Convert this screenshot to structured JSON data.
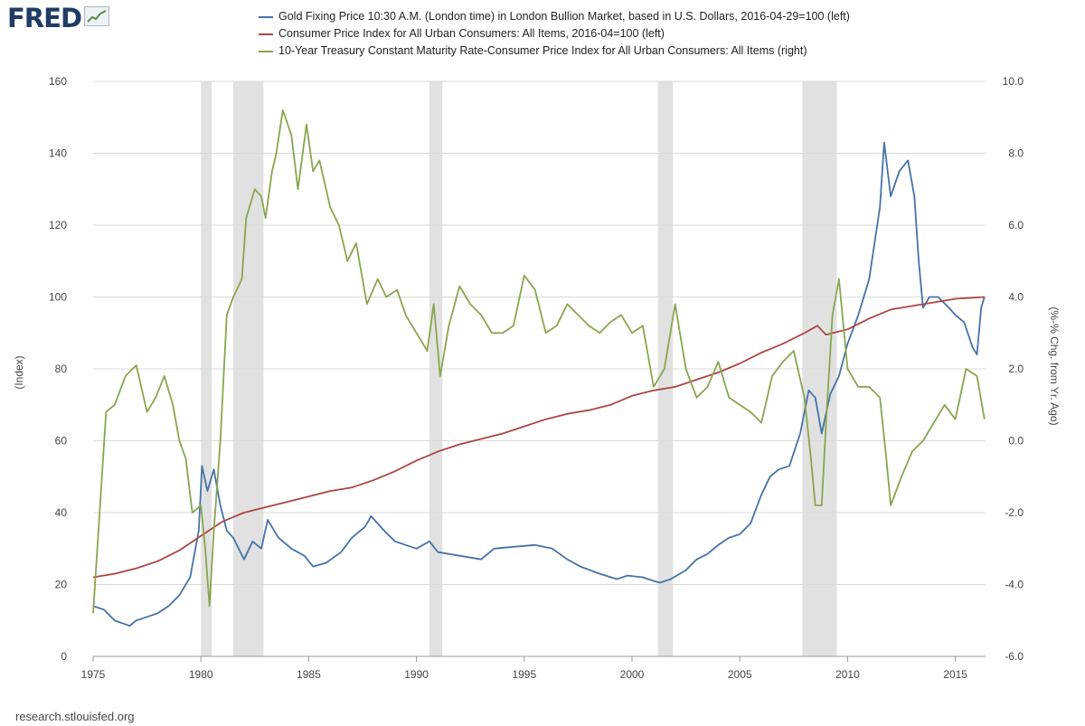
{
  "logo": {
    "text": "FRED"
  },
  "source": "research.stlouisfed.org",
  "colors": {
    "gold": "#4572a7",
    "cpi": "#aa4643",
    "spread": "#89a54e",
    "recession": "#e1e1e1",
    "grid": "#d9d9d9"
  },
  "chart_data": {
    "type": "line",
    "title": "",
    "xlabel": "",
    "ylabel_left": "(Index)",
    "ylabel_right": "(%-% Chg. from Yr. Ago)",
    "xlim": [
      1975.0,
      2016.4
    ],
    "ylim_left": [
      0,
      160
    ],
    "ylim_right": [
      -6,
      10
    ],
    "grid": true,
    "legend_position": "top",
    "x_ticks": [
      "1975",
      "1980",
      "1985",
      "1990",
      "1995",
      "2000",
      "2005",
      "2010",
      "2015"
    ],
    "left_ticks": [
      "0",
      "20",
      "40",
      "60",
      "80",
      "100",
      "120",
      "140",
      "160"
    ],
    "right_ticks": [
      "-6.0",
      "-4.0",
      "-2.0",
      "0.0",
      "2.0",
      "4.0",
      "6.0",
      "8.0",
      "10.0"
    ],
    "recessions": [
      [
        1980.0,
        1980.5
      ],
      [
        1981.5,
        1982.9
      ],
      [
        1990.6,
        1991.2
      ],
      [
        2001.2,
        2001.9
      ],
      [
        2007.9,
        2009.5
      ]
    ],
    "series": [
      {
        "name": "Gold Fixing Price 10:30 A.M. (London time) in London Bullion Market, based in U.S. Dollars, 2016-04-29=100 (left)",
        "axis": "left",
        "color_key": "gold",
        "x": [
          1975.0,
          1975.5,
          1976.0,
          1976.7,
          1977.0,
          1977.5,
          1978.0,
          1978.5,
          1979.0,
          1979.5,
          1979.9,
          1980.05,
          1980.3,
          1980.6,
          1980.9,
          1981.2,
          1981.5,
          1982.0,
          1982.4,
          1982.8,
          1983.1,
          1983.6,
          1984.2,
          1984.8,
          1985.2,
          1985.8,
          1986.5,
          1987.0,
          1987.6,
          1987.9,
          1988.5,
          1989.0,
          1989.5,
          1990.0,
          1990.6,
          1991.0,
          1992.0,
          1993.0,
          1993.6,
          1994.5,
          1995.5,
          1996.3,
          1997.0,
          1997.6,
          1998.5,
          1999.3,
          1999.8,
          2000.5,
          2001.0,
          2001.3,
          2001.8,
          2002.5,
          2003.0,
          2003.5,
          2004.0,
          2004.5,
          2005.0,
          2005.5,
          2006.0,
          2006.4,
          2006.8,
          2007.3,
          2007.8,
          2008.2,
          2008.5,
          2008.8,
          2009.2,
          2009.6,
          2010.0,
          2010.5,
          2011.0,
          2011.5,
          2011.7,
          2012.0,
          2012.4,
          2012.8,
          2013.1,
          2013.3,
          2013.5,
          2013.8,
          2014.2,
          2014.7,
          2015.0,
          2015.4,
          2015.8,
          2016.0,
          2016.2,
          2016.35
        ],
        "values": [
          14,
          13,
          10,
          8.5,
          10,
          11,
          12,
          14,
          17,
          22,
          35,
          53,
          46,
          52,
          42,
          35,
          33,
          27,
          32,
          30,
          38,
          33,
          30,
          28,
          25,
          26,
          29,
          33,
          36,
          39,
          35,
          32,
          31,
          30,
          32,
          29,
          28,
          27,
          30,
          30.5,
          31,
          30,
          27,
          25,
          23,
          21.5,
          22.5,
          22,
          21,
          20.5,
          21.5,
          24,
          27,
          28.5,
          31,
          33,
          34,
          37,
          45,
          50,
          52,
          53,
          62,
          74,
          72,
          62,
          73,
          78,
          87,
          95,
          105,
          125,
          143,
          128,
          135,
          138,
          128,
          110,
          97,
          100,
          100,
          97,
          95,
          93,
          86,
          84,
          97,
          100
        ]
      },
      {
        "name": "Consumer Price Index for All Urban Consumers: All Items, 2016-04=100 (left)",
        "axis": "left",
        "color_key": "cpi",
        "x": [
          1975.0,
          1976.0,
          1977.0,
          1978.0,
          1979.0,
          1980.0,
          1981.0,
          1982.0,
          1983.0,
          1984.0,
          1985.0,
          1986.0,
          1987.0,
          1988.0,
          1989.0,
          1990.0,
          1991.0,
          1992.0,
          1993.0,
          1994.0,
          1995.0,
          1996.0,
          1997.0,
          1998.0,
          1999.0,
          2000.0,
          2001.0,
          2002.0,
          2003.0,
          2004.0,
          2005.0,
          2006.0,
          2007.0,
          2008.0,
          2008.6,
          2009.0,
          2010.0,
          2011.0,
          2012.0,
          2013.0,
          2014.0,
          2015.0,
          2016.35
        ],
        "values": [
          22,
          23,
          24.5,
          26.5,
          29.5,
          33.5,
          37.5,
          40,
          41.5,
          43,
          44.5,
          46,
          47,
          49,
          51.5,
          54.5,
          57,
          59,
          60.5,
          62,
          64,
          66,
          67.5,
          68.5,
          70,
          72.5,
          74,
          75,
          77,
          79,
          81.5,
          84.5,
          87,
          90,
          92,
          89.5,
          91,
          94,
          96.5,
          97.5,
          98.5,
          99.5,
          100
        ]
      },
      {
        "name": "10-Year Treasury Constant Maturity Rate-Consumer Price Index for All Urban Consumers: All Items (right)",
        "axis": "right",
        "color_key": "spread",
        "x": [
          1975.0,
          1975.3,
          1975.6,
          1976.0,
          1976.5,
          1977.0,
          1977.5,
          1977.9,
          1978.3,
          1978.7,
          1979.0,
          1979.3,
          1979.6,
          1980.0,
          1980.2,
          1980.4,
          1980.6,
          1980.9,
          1981.2,
          1981.5,
          1981.9,
          1982.1,
          1982.5,
          1982.8,
          1983.0,
          1983.3,
          1983.5,
          1983.8,
          1984.2,
          1984.5,
          1984.9,
          1985.2,
          1985.5,
          1986.0,
          1986.4,
          1986.8,
          1987.2,
          1987.7,
          1988.2,
          1988.6,
          1989.1,
          1989.5,
          1990.0,
          1990.5,
          1990.8,
          1991.1,
          1991.5,
          1992.0,
          1992.5,
          1993.0,
          1993.5,
          1994.0,
          1994.5,
          1995.0,
          1995.5,
          1996.0,
          1996.5,
          1997.0,
          1997.5,
          1998.0,
          1998.5,
          1999.0,
          1999.5,
          2000.0,
          2000.5,
          2001.0,
          2001.5,
          2002.0,
          2002.5,
          2003.0,
          2003.5,
          2004.0,
          2004.5,
          2005.0,
          2005.5,
          2006.0,
          2006.5,
          2007.0,
          2007.5,
          2008.0,
          2008.3,
          2008.5,
          2008.8,
          2009.0,
          2009.3,
          2009.6,
          2010.0,
          2010.5,
          2011.0,
          2011.5,
          2011.8,
          2012.0,
          2012.5,
          2013.0,
          2013.5,
          2014.0,
          2014.5,
          2015.0,
          2015.5,
          2016.0,
          2016.35
        ],
        "values": [
          -4.8,
          -2.0,
          0.8,
          1.0,
          1.8,
          2.1,
          0.8,
          1.2,
          1.8,
          1.0,
          0.0,
          -0.5,
          -2.0,
          -1.8,
          -3.0,
          -4.6,
          -2.5,
          0.0,
          3.5,
          4.0,
          4.5,
          6.2,
          7.0,
          6.8,
          6.2,
          7.5,
          8.0,
          9.2,
          8.5,
          7.0,
          8.8,
          7.5,
          7.8,
          6.5,
          6.0,
          5.0,
          5.5,
          3.8,
          4.5,
          4.0,
          4.2,
          3.5,
          3.0,
          2.5,
          3.8,
          1.8,
          3.2,
          4.3,
          3.8,
          3.5,
          3.0,
          3.0,
          3.2,
          4.6,
          4.2,
          3.0,
          3.2,
          3.8,
          3.5,
          3.2,
          3.0,
          3.3,
          3.5,
          3.0,
          3.2,
          1.5,
          2.0,
          3.8,
          2.0,
          1.2,
          1.5,
          2.2,
          1.2,
          1.0,
          0.8,
          0.5,
          1.8,
          2.2,
          2.5,
          1.2,
          -0.5,
          -1.8,
          -1.8,
          0.5,
          3.5,
          4.5,
          2.0,
          1.5,
          1.5,
          1.2,
          -0.5,
          -1.8,
          -1.0,
          -0.3,
          0.0,
          0.5,
          1.0,
          0.6,
          2.0,
          1.8,
          0.6
        ]
      }
    ]
  }
}
